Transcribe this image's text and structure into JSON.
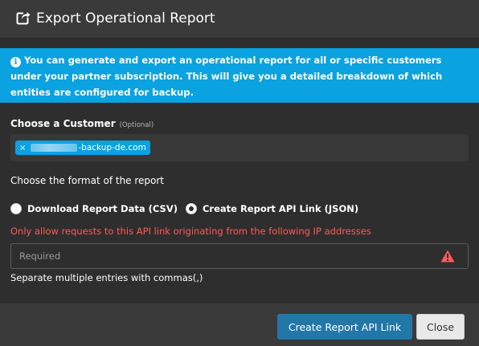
{
  "header": {
    "title": "Export Operational Report",
    "icon": "share-export-icon"
  },
  "info": {
    "icon": "info-icon",
    "text": "You can generate and export an operational report for all or specific customers under your partner subscription. This will give you a detailed breakdown of which entities are configured for backup."
  },
  "customer": {
    "label": "Choose a Customer",
    "optional": "(Optional)",
    "selected_tag": "-backup-de.com",
    "remove_glyph": "×"
  },
  "format": {
    "label": "Choose the format of the report",
    "options": [
      {
        "label": "Download Report Data (CSV)",
        "checked": false
      },
      {
        "label": "Create Report API Link (JSON)",
        "checked": true
      }
    ]
  },
  "ip_restriction": {
    "warning": "Only allow requests to this API link originating from the following IP addresses",
    "placeholder": "Required",
    "value": "",
    "hint": "Separate multiple entries with commas(,)",
    "warning_icon": "warning-triangle-icon"
  },
  "footer": {
    "primary_label": "Create Report API Link",
    "close_label": "Close"
  },
  "colors": {
    "accent": "#0aa2e0",
    "primary_button": "#2277a8",
    "error": "#ff5a5a",
    "background": "#2e2e2e"
  }
}
